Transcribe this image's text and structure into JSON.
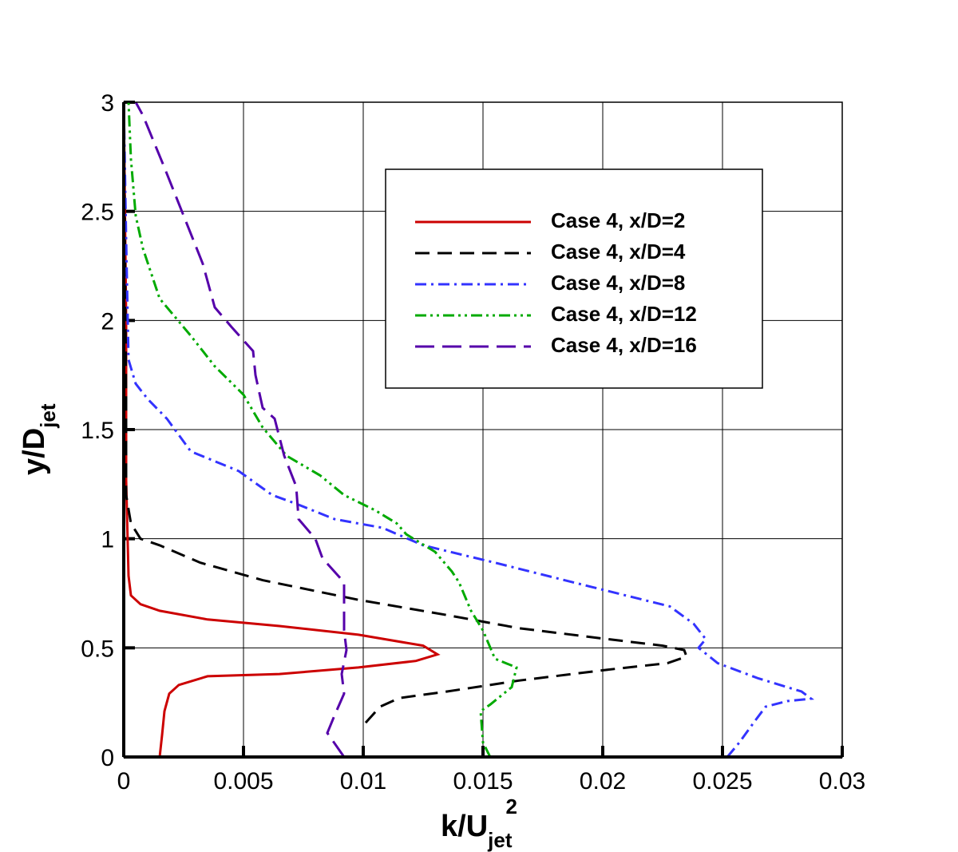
{
  "chart_data": {
    "type": "line",
    "xlabel": [
      "k/U",
      "jet",
      "2"
    ],
    "ylabel": [
      "y/D",
      "jet"
    ],
    "xlim": [
      0,
      0.03
    ],
    "ylim": [
      0,
      3
    ],
    "xticks": [
      0,
      0.005,
      0.01,
      0.015,
      0.02,
      0.025,
      0.03
    ],
    "yticks": [
      0,
      0.5,
      1,
      1.5,
      2,
      2.5,
      3
    ],
    "grid": true,
    "legend": "upper right",
    "series": [
      {
        "name": "Case 4, x/D=2",
        "color": "#cc0000",
        "line_style": "solid",
        "x": [
          0.0015,
          0.0016,
          0.0017,
          0.0019,
          0.0023,
          0.0035,
          0.0065,
          0.0098,
          0.0122,
          0.0131,
          0.0125,
          0.0098,
          0.0065,
          0.0035,
          0.0015,
          0.0007,
          0.0003,
          0.0002,
          0.0001,
          0.0001,
          0
        ],
        "values": [
          0,
          0.1,
          0.21,
          0.29,
          0.33,
          0.37,
          0.38,
          0.41,
          0.44,
          0.47,
          0.51,
          0.56,
          0.6,
          0.63,
          0.67,
          0.7,
          0.74,
          0.83,
          1.27,
          2.0,
          3
        ]
      },
      {
        "name": "Case 4, x/D=4",
        "color": "#000000",
        "line_style": "dashed",
        "x": [
          0.0101,
          0.0107,
          0.0115,
          0.0135,
          0.0165,
          0.0202,
          0.0227,
          0.0235,
          0.0234,
          0.0225,
          0.0202,
          0.0165,
          0.0135,
          0.0098,
          0.0058,
          0.0032,
          0.0015,
          0.0007,
          0.0003,
          0.0001,
          0.0001,
          0
        ],
        "values": [
          0.157,
          0.23,
          0.27,
          0.3,
          0.35,
          0.4,
          0.43,
          0.46,
          0.49,
          0.51,
          0.54,
          0.59,
          0.65,
          0.72,
          0.81,
          0.89,
          0.97,
          1.0,
          1.07,
          1.2,
          1.64,
          3
        ]
      },
      {
        "name": "Case 4, x/D=8",
        "color": "#3333ff",
        "line_style": "dashdot",
        "x": [
          0.0252,
          0.0257,
          0.0263,
          0.0268,
          0.0277,
          0.0287,
          0.0283,
          0.0265,
          0.0248,
          0.024,
          0.0243,
          0.0238,
          0.0228,
          0.0195,
          0.0155,
          0.0125,
          0.0108,
          0.0088,
          0.0072,
          0.0062,
          0.0048,
          0.0028,
          0.0018,
          0.001,
          0.0005,
          0.0002,
          0.0001,
          0
        ],
        "values": [
          0,
          0.066,
          0.157,
          0.23,
          0.256,
          0.267,
          0.3,
          0.36,
          0.43,
          0.5,
          0.54,
          0.61,
          0.69,
          0.78,
          0.89,
          0.97,
          1.05,
          1.09,
          1.16,
          1.2,
          1.31,
          1.4,
          1.55,
          1.64,
          1.71,
          1.82,
          2.37,
          3
        ]
      },
      {
        "name": "Case 4, x/D=12",
        "color": "#00aa00",
        "line_style": "dashdotdot",
        "x": [
          0.0153,
          0.015,
          0.0149,
          0.0153,
          0.0162,
          0.0164,
          0.0155,
          0.015,
          0.0145,
          0.014,
          0.0137,
          0.013,
          0.0118,
          0.0114,
          0.0105,
          0.0092,
          0.0082,
          0.0068,
          0.0058,
          0.005,
          0.0038,
          0.0028,
          0.0015,
          0.0008,
          0.0005,
          0.0003,
          0.0002
        ],
        "values": [
          0,
          0.066,
          0.21,
          0.24,
          0.32,
          0.41,
          0.45,
          0.58,
          0.67,
          0.8,
          0.85,
          0.94,
          1.02,
          1.07,
          1.13,
          1.2,
          1.29,
          1.38,
          1.51,
          1.66,
          1.79,
          1.93,
          2.1,
          2.33,
          2.48,
          2.74,
          3
        ]
      },
      {
        "name": "Case 4, x/D=16",
        "color": "#5500aa",
        "line_style": "longdash",
        "x": [
          0.0092,
          0.0085,
          0.0088,
          0.0092,
          0.0091,
          0.0093,
          0.0092,
          0.0092,
          0.0092,
          0.0083,
          0.008,
          0.0073,
          0.0072,
          0.0067,
          0.0063,
          0.0058,
          0.0055,
          0.0054,
          0.0045,
          0.0038,
          0.0033,
          0.0025,
          0.0017,
          0.0008,
          0.0005
        ],
        "values": [
          0,
          0.11,
          0.19,
          0.29,
          0.38,
          0.49,
          0.58,
          0.71,
          0.8,
          0.91,
          1.0,
          1.09,
          1.24,
          1.38,
          1.55,
          1.6,
          1.75,
          1.86,
          1.97,
          2.06,
          2.26,
          2.48,
          2.7,
          2.94,
          3
        ]
      }
    ]
  }
}
